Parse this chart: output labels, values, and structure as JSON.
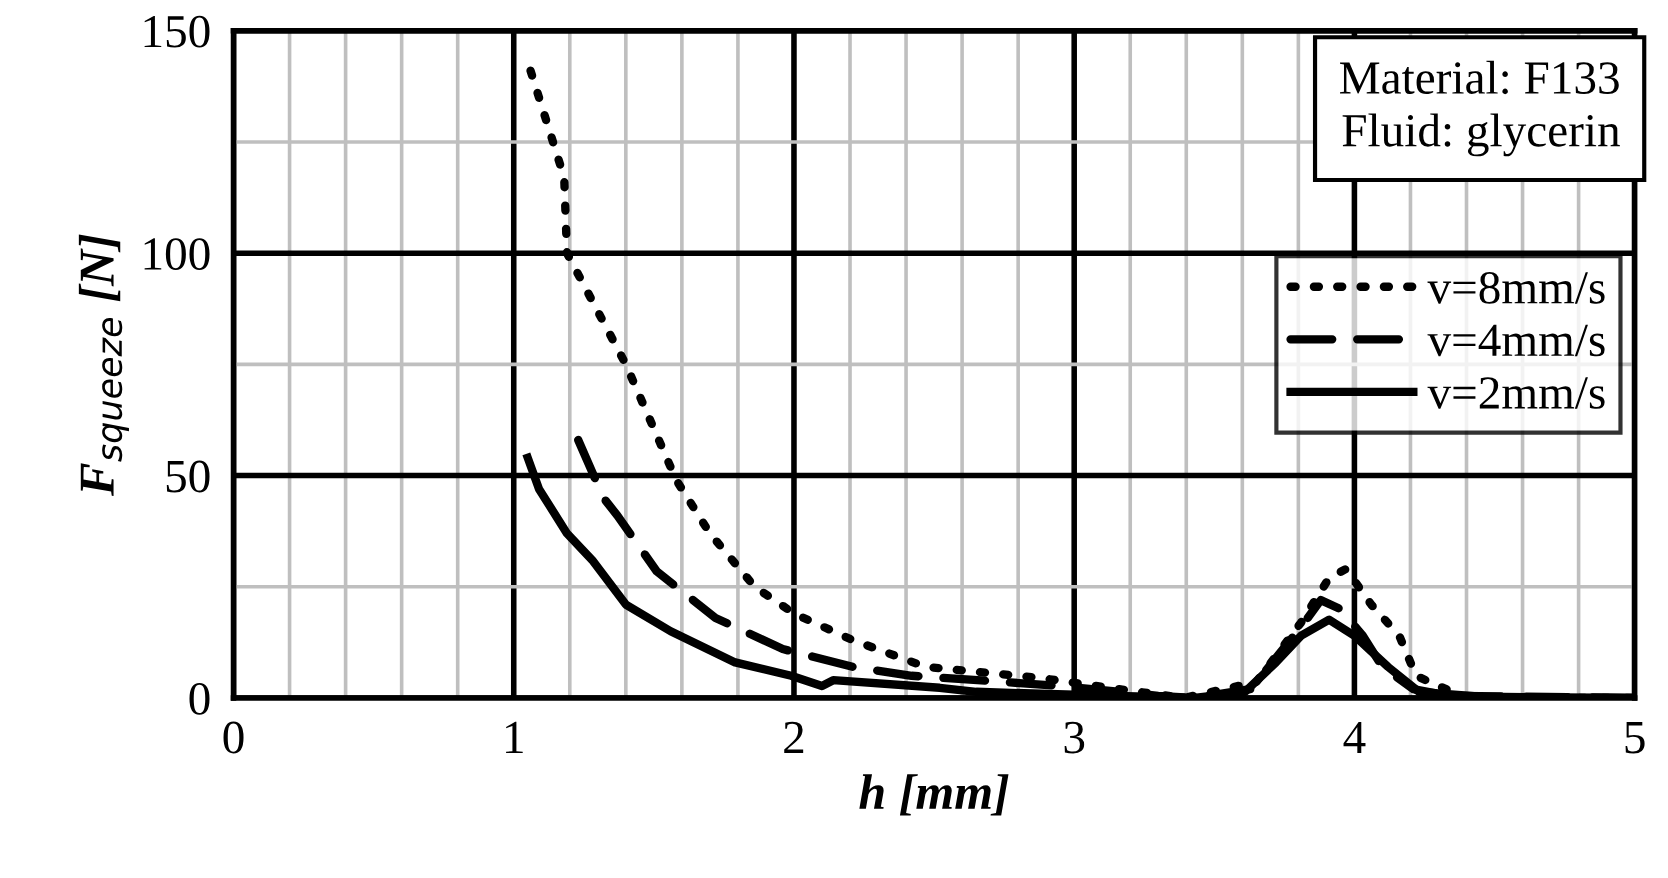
{
  "chart_data": {
    "type": "line",
    "xlabel": "h [mm]",
    "ylabel": "F$_{squeeze}$ [N]",
    "xlim": [
      0,
      5
    ],
    "ylim": [
      0,
      150
    ],
    "xticks": [
      0,
      1,
      2,
      3,
      4,
      5
    ],
    "yticks": [
      0,
      50,
      100,
      150
    ],
    "grid": true,
    "legend": "right",
    "marker": "none",
    "annotations": [
      "Material: F133\nFluid: glycerin"
    ],
    "series": [
      {
        "name": "v=8mm/s",
        "color": "#000000",
        "line_style": "dotted",
        "x": [
          1.06,
          1.18,
          1.19,
          1.4,
          1.58,
          1.7,
          1.86,
          2.0,
          2.21,
          2.47,
          2.88,
          3.16,
          3.39,
          3.65,
          3.81,
          3.91,
          3.97,
          4.06,
          4.16,
          4.22,
          4.29,
          4.4,
          5.0
        ],
        "values": [
          141,
          117,
          100,
          75,
          49,
          37,
          25,
          19,
          13,
          7,
          4.5,
          2,
          0,
          3.6,
          17,
          27,
          29,
          21,
          14,
          5,
          3,
          0,
          0
        ]
      },
      {
        "name": "v=4mm/s",
        "color": "#000000",
        "line_style": "dashed",
        "x": [
          1.23,
          1.32,
          1.37,
          1.51,
          1.72,
          1.96,
          2.21,
          2.42,
          2.75,
          2.95,
          3.3,
          3.43,
          3.63,
          3.72,
          3.81,
          3.88,
          3.95,
          4.03,
          4.1,
          4.21,
          4.34,
          5.0
        ],
        "values": [
          58,
          45,
          41,
          28.5,
          18,
          11,
          7,
          5,
          3.6,
          2.7,
          0.5,
          0,
          2,
          9,
          16,
          22,
          20,
          14,
          7,
          2,
          0.5,
          0
        ]
      },
      {
        "name": "v=2mm/s",
        "color": "#000000",
        "line_style": "solid",
        "x": [
          1.05,
          1.09,
          1.19,
          1.28,
          1.4,
          1.56,
          1.79,
          1.99,
          2.1,
          2.14,
          2.52,
          2.65,
          3.12,
          3.43,
          3.61,
          3.72,
          3.81,
          3.91,
          4.0,
          4.12,
          4.23,
          4.45,
          5.0
        ],
        "values": [
          54,
          47,
          37,
          31,
          21,
          15,
          8,
          5,
          2.7,
          4,
          2.3,
          1.4,
          0.5,
          0,
          1.4,
          8,
          14,
          17.6,
          14,
          7,
          1.4,
          0.3,
          0
        ]
      }
    ]
  }
}
